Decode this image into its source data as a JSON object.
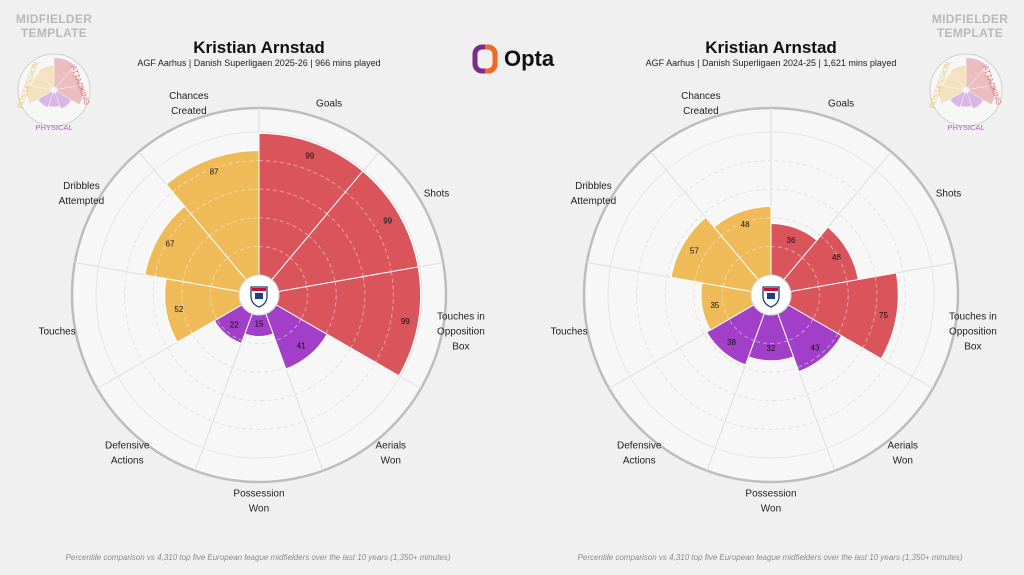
{
  "brand": {
    "name": "Opta"
  },
  "template": {
    "line1": "MIDFIELDER",
    "line2": "TEMPLATE",
    "categories": [
      "POSSESSION",
      "ATTACKING",
      "PHYSICAL"
    ]
  },
  "colors": {
    "attacking": "#d9545b",
    "possession": "#efbb58",
    "physical": "#a13fc8",
    "grid": "#cfcfcf",
    "brand_orange": "#f26a21",
    "brand_purple": "#7b2d8e"
  },
  "chart_data": [
    {
      "type": "polar-bar",
      "title": "Kristian Arnstad",
      "subtitle": "AGF Aarhus | Danish Superligaen 2025-26 | 966 mins played",
      "footnote": "Percentile comparison vs 4,310 top five European league midfielders over the last 10 years (1,350+ minutes)",
      "rlim": [
        0,
        100
      ],
      "categories": [
        {
          "label": "Goals",
          "value": 99,
          "group": "attacking"
        },
        {
          "label": "Shots",
          "value": 99,
          "group": "attacking"
        },
        {
          "label": "Touches in Opposition Box",
          "value": 99,
          "group": "attacking"
        },
        {
          "label": "Aerials Won",
          "value": 41,
          "group": "physical"
        },
        {
          "label": "Possession Won",
          "value": 15,
          "group": "physical"
        },
        {
          "label": "Defensive Actions",
          "value": 22,
          "group": "physical"
        },
        {
          "label": "Touches",
          "value": 52,
          "group": "possession"
        },
        {
          "label": "Dribbles Attempted",
          "value": 67,
          "group": "possession"
        },
        {
          "label": "Chances Created",
          "value": 87,
          "group": "possession"
        }
      ]
    },
    {
      "type": "polar-bar",
      "title": "Kristian Arnstad",
      "subtitle": "AGF Aarhus | Danish Superligaen 2024-25 | 1,621 mins played",
      "footnote": "Percentile comparison vs 4,310 top five European league midfielders over the last 10 years (1,350+ minutes)",
      "rlim": [
        0,
        100
      ],
      "categories": [
        {
          "label": "Goals",
          "value": 36,
          "group": "attacking"
        },
        {
          "label": "Shots",
          "value": 48,
          "group": "attacking"
        },
        {
          "label": "Touches in Opposition Box",
          "value": 75,
          "group": "attacking"
        },
        {
          "label": "Aerials Won",
          "value": 43,
          "group": "physical"
        },
        {
          "label": "Possession Won",
          "value": 32,
          "group": "physical"
        },
        {
          "label": "Defensive Actions",
          "value": 38,
          "group": "physical"
        },
        {
          "label": "Touches",
          "value": 35,
          "group": "possession"
        },
        {
          "label": "Dribbles Attempted",
          "value": 57,
          "group": "possession"
        },
        {
          "label": "Chances Created",
          "value": 48,
          "group": "possession"
        }
      ]
    }
  ]
}
